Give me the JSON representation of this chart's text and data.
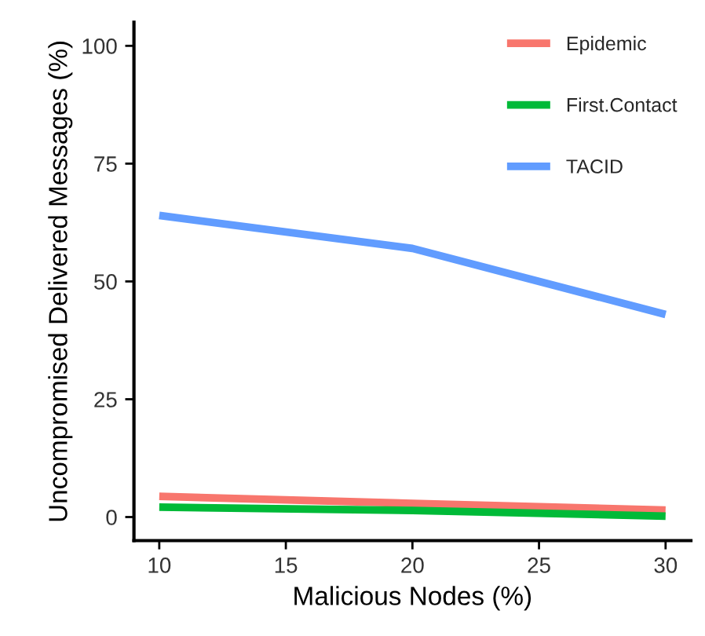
{
  "chart_data": {
    "type": "line",
    "xlabel": "Malicious Nodes (%)",
    "ylabel": "Uncompromised Delivered Messages (%)",
    "x": [
      10,
      20,
      30
    ],
    "series": [
      {
        "name": "Epidemic",
        "color": "#f8766d",
        "values": [
          4.4,
          2.9,
          1.5
        ]
      },
      {
        "name": "First.Contact",
        "color": "#00ba38",
        "values": [
          2.1,
          1.4,
          0.2
        ]
      },
      {
        "name": "TACID",
        "color": "#619cff",
        "values": [
          64,
          57,
          43
        ]
      }
    ],
    "xlim": [
      9,
      31
    ],
    "xticks": [
      10,
      15,
      20,
      25,
      30
    ],
    "ylim": [
      -5,
      105
    ],
    "yticks": [
      0,
      25,
      50,
      75,
      100
    ],
    "grid": false,
    "legend": "top right",
    "marker": "none",
    "line_style": "solid"
  }
}
